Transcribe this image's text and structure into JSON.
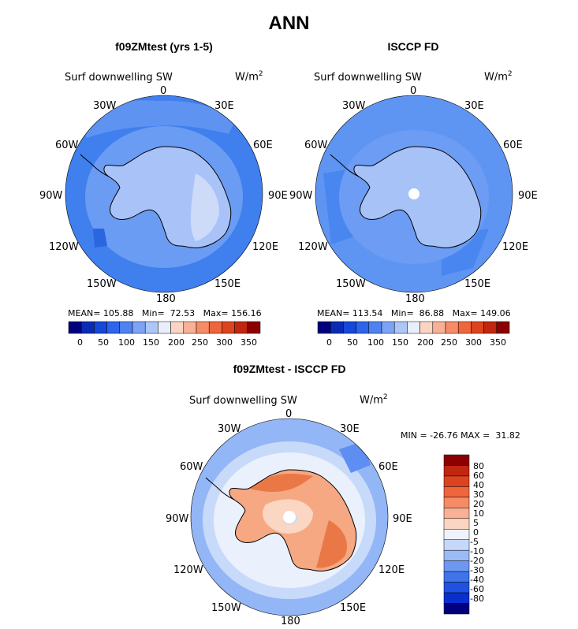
{
  "figure_title": "ANN",
  "colors": {
    "ocean_model": "#3f7fee",
    "ocean_obs": "#5f95f2",
    "land_model_1": "#a9c3f8",
    "land_model_2": "#cddbf9",
    "land_obs": "#a6c2f7",
    "diff_pos_strong": "#ea7846",
    "diff_pos_mid": "#f5a882",
    "diff_pos_light": "#fbd6c2",
    "diff_zero": "#eaf1fd",
    "diff_neg_light": "#c8dafa",
    "diff_neg": "#93b6f6"
  },
  "panels": [
    {
      "title": "f09ZMtest (yrs 1-5)",
      "variable": "Surf downwelling SW",
      "units": "W/m",
      "units_exp": "2",
      "lon_labels": [
        "0",
        "30E",
        "60E",
        "90E",
        "120E",
        "150E",
        "180",
        "150W",
        "120W",
        "90W",
        "60W",
        "30W"
      ],
      "mean_label": "MEAN=",
      "mean": "105.88",
      "min_label": "Min=",
      "min": "72.53",
      "max_label": "Max=",
      "max": "156.16",
      "colorbar_ticks": [
        "0",
        "50",
        "100",
        "150",
        "200",
        "250",
        "300",
        "350"
      ]
    },
    {
      "title": "ISCCP FD",
      "variable": "Surf downwelling SW",
      "units": "W/m",
      "units_exp": "2",
      "lon_labels": [
        "0",
        "30E",
        "60E",
        "90E",
        "120E",
        "150E",
        "180",
        "150W",
        "120W",
        "90W",
        "60W",
        "30W"
      ],
      "mean_label": "MEAN=",
      "mean": "113.54",
      "min_label": "Min=",
      "min": "86.88",
      "max_label": "Max=",
      "max": "149.06",
      "colorbar_ticks": [
        "0",
        "50",
        "100",
        "150",
        "200",
        "250",
        "300",
        "350"
      ]
    },
    {
      "title": "f09ZMtest - ISCCP FD",
      "variable": "Surf downwelling SW",
      "units": "W/m",
      "units_exp": "2",
      "lon_labels": [
        "0",
        "30E",
        "60E",
        "90E",
        "120E",
        "150E",
        "180",
        "150W",
        "120W",
        "90W",
        "60W",
        "30W"
      ],
      "minmax_text": "MIN = -26.76 MAX =  31.82",
      "colorbar_ticks": [
        "80",
        "60",
        "40",
        "30",
        "20",
        "10",
        "5",
        "0",
        "-5",
        "-10",
        "-20",
        "-30",
        "-40",
        "-60",
        "-80"
      ]
    }
  ],
  "abs_colorbar_colors": [
    "#00007f",
    "#0a2cb4",
    "#1547d8",
    "#2e64ea",
    "#4e82f0",
    "#7da3f4",
    "#adc6f8",
    "#e8eefb",
    "#fbd5c4",
    "#f8b196",
    "#f58c66",
    "#f0663c",
    "#dc4420",
    "#c02610",
    "#8b0000"
  ],
  "diff_colorbar_colors": [
    "#8b0000",
    "#c02610",
    "#dc4420",
    "#f0663c",
    "#f58c66",
    "#f8b196",
    "#fbd5c4",
    "#eef3fb",
    "#c6d8fa",
    "#9bbbf6",
    "#6d98f2",
    "#3f74ea",
    "#1f52e2",
    "#0a2fcf",
    "#00007f"
  ]
}
